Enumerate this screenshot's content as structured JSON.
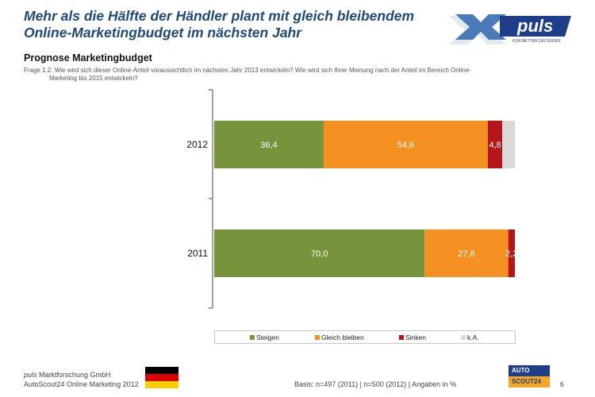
{
  "header": {
    "title_line1": "Mehr als die Hälfte der Händler plant mit gleich bleibendem",
    "title_line2": "Online-Marketingbudget im nächsten Jahr",
    "logo_text": "puls",
    "logo_tagline": "FOR BETTER DECISIONS"
  },
  "subtitle": "Prognose Marketingbudget",
  "question_line1": "Frage 1.2: Wie wird sich dieser Online-Anteil voraussichtlich im nächsten Jahr 2013 entwickeln? Wie wird sich Ihrer Meinung nach der Anteil im Bereich Online-",
  "question_line2": "Marketing bis 2015 entwickeln?",
  "colors": {
    "steigen": "#77933c",
    "gleich": "#f59123",
    "sinken": "#b7151c",
    "ka": "#d9d9d9",
    "title": "#1f497d"
  },
  "chart_data": {
    "type": "bar",
    "orientation": "horizontal",
    "stacked": true,
    "unit": "%",
    "categories": [
      "2012",
      "2011"
    ],
    "series": [
      {
        "name": "Steigen",
        "values": [
          36.4,
          70.0
        ],
        "labels": [
          "36,4",
          "70,0"
        ]
      },
      {
        "name": "Gleich bleiben",
        "values": [
          54.6,
          27.8
        ],
        "labels": [
          "54,6",
          "27,8"
        ]
      },
      {
        "name": "Sinken",
        "values": [
          4.8,
          2.2
        ],
        "labels": [
          "4,8",
          "2,2"
        ]
      },
      {
        "name": "k.A.",
        "values": [
          4.2,
          0
        ],
        "labels": [
          "",
          ""
        ]
      }
    ],
    "xlim": [
      0,
      100
    ],
    "legend_position": "bottom"
  },
  "footer": {
    "company_italic": "puls",
    "company_rest": " Marktforschung GmbH",
    "study": "AutoScout24 Online Marketing 2012",
    "basis": "Basis: n=497 (2011) | n=500 (2012) | Angaben in %",
    "page_number": "6",
    "as24_top": "AUTO",
    "as24_bottom": "SCOUT24"
  }
}
